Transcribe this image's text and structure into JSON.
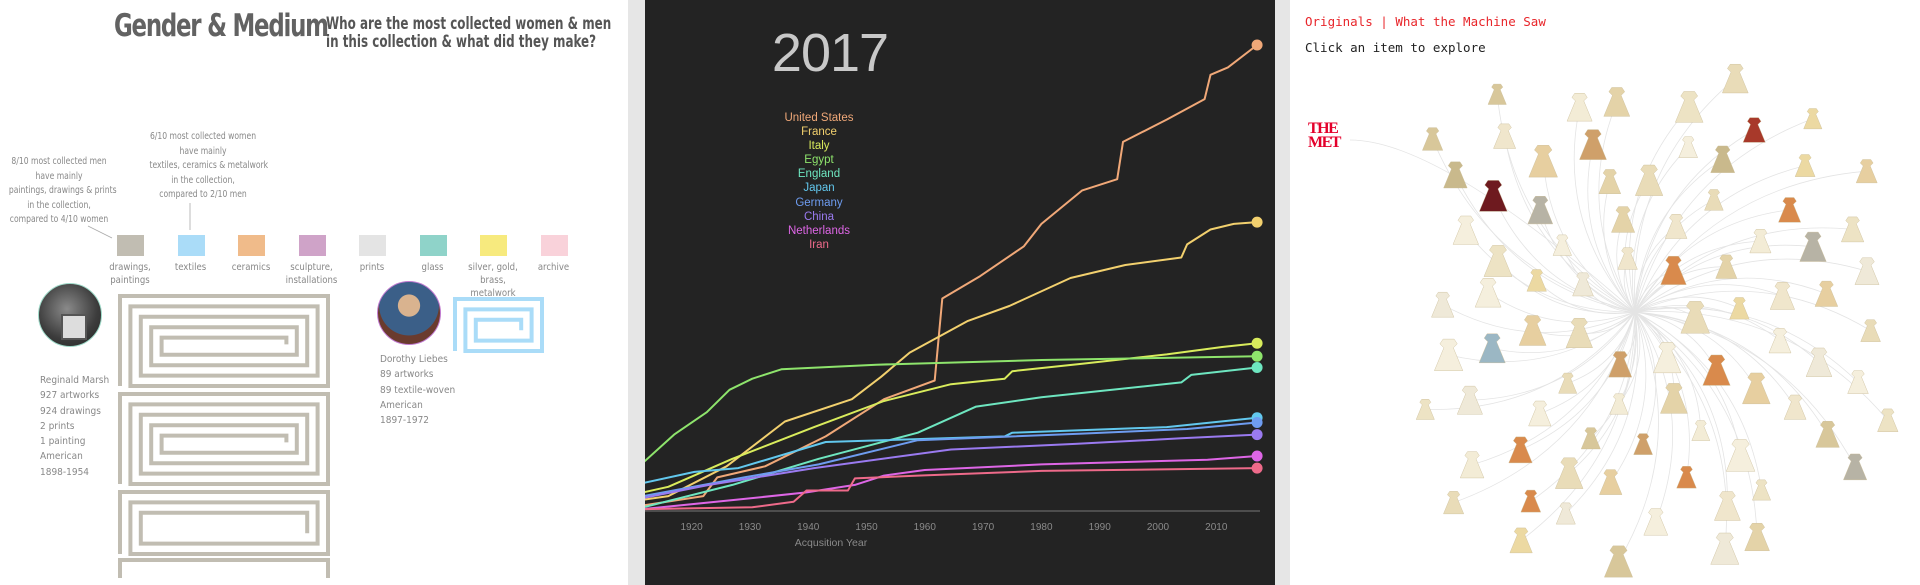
{
  "left_panel": {
    "title": "Gender & Medium",
    "subtitle_line1": "Who are the most collected women & men",
    "subtitle_line2": "in this collection & what did they make?",
    "note_men": [
      "8/10 most collected men",
      "have mainly",
      "paintings, drawings & prints",
      "in the collection,",
      "compared to 4/10 women"
    ],
    "note_women": [
      "6/10 most collected women",
      "have mainly",
      "textiles, ceramics & metalwork",
      "in the collection,",
      "compared to 2/10 men"
    ],
    "mediums": [
      {
        "label": "drawings,\npaintings",
        "color": "#c1bdb2"
      },
      {
        "label": "textiles",
        "color": "#aadcf8"
      },
      {
        "label": "ceramics",
        "color": "#f0bb8a"
      },
      {
        "label": "sculpture,\ninstallations",
        "color": "#cfa3c8"
      },
      {
        "label": "prints",
        "color": "#e4e4e4"
      },
      {
        "label": "glass",
        "color": "#8fd3c9"
      },
      {
        "label": "silver, gold,\nbrass,\nmetalwork",
        "color": "#f7ea7e"
      },
      {
        "label": "archive",
        "color": "#f9d2da"
      }
    ],
    "artists": [
      {
        "name": "Reginald Marsh",
        "lines": [
          "927 artworks",
          "924 drawings",
          "2 prints",
          "1 painting",
          "American",
          "1898-1954"
        ],
        "medium_color": "#c1bdb2"
      },
      {
        "name": "Dorothy Liebes",
        "lines": [
          "89 artworks",
          "89 textile-woven",
          "American",
          "1897-1972"
        ],
        "medium_color": "#aadcf8"
      }
    ]
  },
  "middle_panel": {
    "year_display": "2017",
    "chart_data": {
      "type": "line",
      "title": "",
      "xlabel": "Acqusition Year",
      "ylabel": "",
      "xlim": [
        1912,
        2017.5
      ],
      "ylim": [
        0,
        100
      ],
      "grid": false,
      "legend_placement": "top-left",
      "x_ticks": [
        "1920",
        "1930",
        "1940",
        "1950",
        "1960",
        "1970",
        "1980",
        "1990",
        "2000",
        "2010"
      ],
      "series": [
        {
          "name": "United States",
          "color": "#f0a878",
          "points": [
            [
              1911.7,
              1.2
            ],
            [
              1922,
              3.2
            ],
            [
              1924.4,
              7.2
            ],
            [
              1932.6,
              9.6
            ],
            [
              1943,
              16
            ],
            [
              1953,
              24
            ],
            [
              1961.7,
              28
            ],
            [
              1963,
              45.6
            ],
            [
              1969.5,
              50.4
            ],
            [
              1977,
              56.8
            ],
            [
              1980,
              61.6
            ],
            [
              1987,
              68.8
            ],
            [
              1993,
              71.2
            ],
            [
              1994,
              79.2
            ],
            [
              2001.5,
              84
            ],
            [
              2008,
              88.4
            ],
            [
              2009,
              93.6
            ],
            [
              2012,
              95.2
            ],
            [
              2017,
              100
            ]
          ]
        },
        {
          "name": "France",
          "color": "#f2d06e",
          "points": [
            [
              1911.7,
              2.4
            ],
            [
              1916,
              3.2
            ],
            [
              1926,
              9.6
            ],
            [
              1936,
              19.2
            ],
            [
              1947.5,
              24
            ],
            [
              1952.5,
              28.8
            ],
            [
              1957.4,
              34
            ],
            [
              1967.4,
              40.8
            ],
            [
              1974.5,
              44
            ],
            [
              1985,
              50
            ],
            [
              1994.4,
              52.8
            ],
            [
              2004,
              54.4
            ],
            [
              2005,
              57.2
            ],
            [
              2009,
              60.4
            ],
            [
              2013,
              61.6
            ],
            [
              2017,
              62
            ]
          ]
        },
        {
          "name": "Italy",
          "color": "#d9ec5c",
          "points": [
            [
              1911.7,
              4
            ],
            [
              1916,
              5.2
            ],
            [
              1927,
              11.2
            ],
            [
              1941,
              18
            ],
            [
              1953,
              23.6
            ],
            [
              1964.5,
              27.2
            ],
            [
              1973.7,
              28.4
            ],
            [
              1975,
              30
            ],
            [
              1987,
              31.6
            ],
            [
              2001.5,
              33.6
            ],
            [
              2011,
              35.2
            ],
            [
              2017,
              36
            ]
          ]
        },
        {
          "name": "Egypt",
          "color": "#8ee46c",
          "points": [
            [
              1911.7,
              10.4
            ],
            [
              1917,
              16.4
            ],
            [
              1922.6,
              21.2
            ],
            [
              1926.5,
              26
            ],
            [
              1930.4,
              28.4
            ],
            [
              1935.4,
              30.4
            ],
            [
              1951.7,
              31.4
            ],
            [
              1980,
              32.4
            ],
            [
              2017,
              33.2
            ]
          ]
        },
        {
          "name": "England",
          "color": "#6ee6c0",
          "points": [
            [
              1911.7,
              0.8
            ],
            [
              1927,
              5.6
            ],
            [
              1941.8,
              11.2
            ],
            [
              1958.8,
              16.8
            ],
            [
              1968.8,
              22.4
            ],
            [
              1980,
              24.4
            ],
            [
              2004,
              27.6
            ],
            [
              2005.7,
              29.2
            ],
            [
              2017,
              30.8
            ]
          ]
        },
        {
          "name": "Japan",
          "color": "#62c8ee",
          "points": [
            [
              1911.7,
              6
            ],
            [
              1920.5,
              8.4
            ],
            [
              1928,
              9.2
            ],
            [
              1943,
              14.8
            ],
            [
              1973.7,
              16
            ],
            [
              1975,
              16.8
            ],
            [
              2001.5,
              18
            ],
            [
              2017,
              20
            ]
          ]
        },
        {
          "name": "Germany",
          "color": "#6e9cf0",
          "points": [
            [
              1911.7,
              3.2
            ],
            [
              1929,
              7.2
            ],
            [
              1941.8,
              10
            ],
            [
              1958.8,
              15.2
            ],
            [
              1987,
              16.6
            ],
            [
              2005,
              17.6
            ],
            [
              2017,
              19
            ]
          ]
        },
        {
          "name": "China",
          "color": "#9a7af0",
          "points": [
            [
              1911.7,
              2.8
            ],
            [
              1923,
              5.6
            ],
            [
              1941,
              9.2
            ],
            [
              1964.5,
              13.2
            ],
            [
              1985.8,
              14.4
            ],
            [
              2004,
              15.6
            ],
            [
              2017,
              16.4
            ]
          ]
        },
        {
          "name": "Netherlands",
          "color": "#de66e6",
          "points": [
            [
              1911.7,
              0.4
            ],
            [
              1927.6,
              2.4
            ],
            [
              1939.7,
              4
            ],
            [
              1948,
              5.6
            ],
            [
              1953,
              7.6
            ],
            [
              1960,
              8.8
            ],
            [
              1980,
              10
            ],
            [
              2008.5,
              11
            ],
            [
              2017,
              11.8
            ]
          ]
        },
        {
          "name": "Iran",
          "color": "#ee6a8a",
          "points": [
            [
              1911.7,
              0.4
            ],
            [
              1930.4,
              0.8
            ],
            [
              1937.5,
              2
            ],
            [
              1939.7,
              4.4
            ],
            [
              1946.8,
              4.4
            ],
            [
              1948,
              7
            ],
            [
              1958.8,
              7.6
            ],
            [
              1980,
              8.6
            ],
            [
              2017,
              9.2
            ]
          ]
        }
      ]
    }
  },
  "right_panel": {
    "nav_originals": "Originals",
    "nav_separator": "|",
    "nav_machine": "What the Machine Saw",
    "hint": "Click an item to explore",
    "logo_text": "THE MET",
    "accent_color": "#e8262b"
  }
}
